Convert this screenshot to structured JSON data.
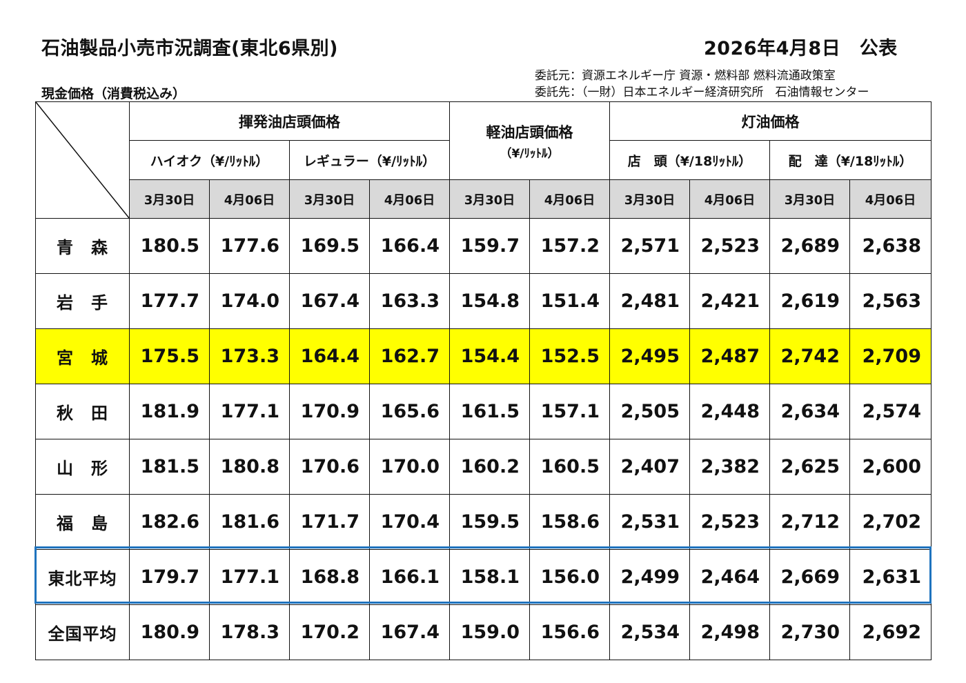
{
  "header": {
    "title": "石油製品小売市況調査(東北6県別)",
    "date": "2026年4月8日　公表",
    "subtitle": "現金価格（消費税込み）",
    "consignor": "委託元：資源エネルギー庁 資源・燃料部 燃料流通政策室",
    "consignee": "委託先：（一財）日本エネルギー経済研究所　石油情報センター"
  },
  "columns": {
    "gasoline": "揮発油店頭価格",
    "premium": "ハイオク（¥/ﾘｯﾄﾙ）",
    "regular": "レギュラー（¥/ﾘｯﾄﾙ）",
    "diesel": "軽油店頭価格",
    "diesel_unit": "（¥/ﾘｯﾄﾙ）",
    "kerosene": "灯油価格",
    "kerosene_store": "店　頭（¥/18ﾘｯﾄﾙ）",
    "kerosene_delivery": "配　達（¥/18ﾘｯﾄﾙ）",
    "dates": [
      "3月30日",
      "4月06日",
      "3月30日",
      "4月06日",
      "3月30日",
      "4月06日",
      "3月30日",
      "4月06日",
      "3月30日",
      "4月06日"
    ]
  },
  "rows": [
    {
      "name": "青　森",
      "values": [
        "180.5",
        "177.6",
        "169.5",
        "166.4",
        "159.7",
        "157.2",
        "2,571",
        "2,523",
        "2,689",
        "2,638"
      ]
    },
    {
      "name": "岩　手",
      "values": [
        "177.7",
        "174.0",
        "167.4",
        "163.3",
        "154.8",
        "151.4",
        "2,481",
        "2,421",
        "2,619",
        "2,563"
      ]
    },
    {
      "name": "宮　城",
      "values": [
        "175.5",
        "173.3",
        "164.4",
        "162.7",
        "154.4",
        "152.5",
        "2,495",
        "2,487",
        "2,742",
        "2,709"
      ]
    },
    {
      "name": "秋　田",
      "values": [
        "181.9",
        "177.1",
        "170.9",
        "165.6",
        "161.5",
        "157.1",
        "2,505",
        "2,448",
        "2,634",
        "2,574"
      ]
    },
    {
      "name": "山　形",
      "values": [
        "181.5",
        "180.8",
        "170.6",
        "170.0",
        "160.2",
        "160.5",
        "2,407",
        "2,382",
        "2,625",
        "2,600"
      ]
    },
    {
      "name": "福　島",
      "values": [
        "182.6",
        "181.6",
        "171.7",
        "170.4",
        "159.5",
        "158.6",
        "2,531",
        "2,523",
        "2,712",
        "2,702"
      ]
    },
    {
      "name": "東北平均",
      "values": [
        "179.7",
        "177.1",
        "168.8",
        "166.1",
        "158.1",
        "156.0",
        "2,499",
        "2,464",
        "2,669",
        "2,631"
      ]
    },
    {
      "name": "全国平均",
      "values": [
        "180.9",
        "178.3",
        "170.2",
        "167.4",
        "159.0",
        "156.6",
        "2,534",
        "2,498",
        "2,730",
        "2,692"
      ]
    }
  ],
  "colors": {
    "highlight_row": "#ffff00",
    "average_frame": "#1e73be",
    "date_header_bg": "#d9d9d9"
  }
}
